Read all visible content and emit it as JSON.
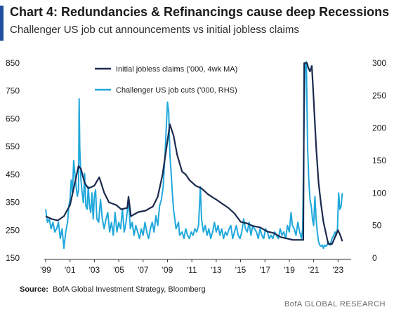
{
  "header": {
    "title": "Chart 4: Redundancies & Refinancings cause deep Recessions",
    "subtitle": "Challenger US job cut announcements vs initial jobless claims"
  },
  "footer": {
    "source_label": "Source:",
    "source_text": "BofA Global Investment Strategy, Bloomberg",
    "brand": "BofA GLOBAL RESEARCH"
  },
  "colors": {
    "dark_series": "#1b2a4e",
    "light_series": "#20a8dc",
    "accent": "#1f4e9c"
  },
  "chart_data": {
    "type": "line",
    "x_range": [
      1999,
      2023.5
    ],
    "x_ticks": [
      {
        "value": 1999,
        "label": "'99"
      },
      {
        "value": 2001,
        "label": "'01"
      },
      {
        "value": 2003,
        "label": "'03"
      },
      {
        "value": 2005,
        "label": "'05"
      },
      {
        "value": 2007,
        "label": "'07"
      },
      {
        "value": 2009,
        "label": "'09"
      },
      {
        "value": 2011,
        "label": "'11"
      },
      {
        "value": 2013,
        "label": "'13"
      },
      {
        "value": 2015,
        "label": "'15"
      },
      {
        "value": 2017,
        "label": "'17"
      },
      {
        "value": 2019,
        "label": "'19"
      },
      {
        "value": 2021,
        "label": "'21"
      },
      {
        "value": 2023,
        "label": "'23"
      }
    ],
    "y_left": {
      "range": [
        150,
        850
      ],
      "ticks": [
        150,
        250,
        350,
        450,
        550,
        650,
        750,
        850
      ]
    },
    "y_right": {
      "range": [
        0,
        300
      ],
      "ticks": [
        0,
        50,
        100,
        150,
        200,
        250,
        300
      ]
    },
    "legend_position": "top-center",
    "grid": false,
    "series": [
      {
        "name": "Initial jobless claims ('000, 4wk MA)",
        "axis": "left",
        "color": "#1b2a4e",
        "points": [
          [
            1999.0,
            300
          ],
          [
            1999.5,
            290
          ],
          [
            2000.0,
            285
          ],
          [
            2000.5,
            300
          ],
          [
            2001.0,
            340
          ],
          [
            2001.3,
            400
          ],
          [
            2001.7,
            480
          ],
          [
            2001.9,
            470
          ],
          [
            2002.2,
            420
          ],
          [
            2002.5,
            400
          ],
          [
            2003.0,
            410
          ],
          [
            2003.4,
            440
          ],
          [
            2003.8,
            385
          ],
          [
            2004.2,
            350
          ],
          [
            2004.8,
            340
          ],
          [
            2005.2,
            325
          ],
          [
            2005.7,
            330
          ],
          [
            2005.8,
            370
          ],
          [
            2006.0,
            300
          ],
          [
            2006.6,
            315
          ],
          [
            2007.2,
            320
          ],
          [
            2007.8,
            335
          ],
          [
            2008.2,
            370
          ],
          [
            2008.6,
            450
          ],
          [
            2008.9,
            540
          ],
          [
            2009.2,
            630
          ],
          [
            2009.5,
            590
          ],
          [
            2009.8,
            520
          ],
          [
            2010.2,
            460
          ],
          [
            2010.5,
            450
          ],
          [
            2010.8,
            430
          ],
          [
            2011.3,
            410
          ],
          [
            2011.8,
            400
          ],
          [
            2012.3,
            380
          ],
          [
            2012.8,
            365
          ],
          [
            2013.0,
            360
          ],
          [
            2013.5,
            345
          ],
          [
            2014.0,
            330
          ],
          [
            2014.5,
            310
          ],
          [
            2015.0,
            280
          ],
          [
            2015.5,
            275
          ],
          [
            2016.0,
            265
          ],
          [
            2016.6,
            260
          ],
          [
            2017.2,
            245
          ],
          [
            2017.7,
            240
          ],
          [
            2018.3,
            225
          ],
          [
            2018.8,
            220
          ],
          [
            2019.3,
            215
          ],
          [
            2019.8,
            215
          ],
          [
            2020.15,
            215
          ],
          [
            2020.22,
            850
          ],
          [
            2020.45,
            850
          ],
          [
            2020.55,
            835
          ],
          [
            2020.7,
            820
          ],
          [
            2020.85,
            840
          ],
          [
            2021.0,
            720
          ],
          [
            2021.2,
            550
          ],
          [
            2021.4,
            420
          ],
          [
            2021.6,
            345
          ],
          [
            2021.8,
            280
          ],
          [
            2022.0,
            240
          ],
          [
            2022.2,
            200
          ],
          [
            2022.5,
            200
          ],
          [
            2022.8,
            230
          ],
          [
            2023.0,
            250
          ],
          [
            2023.2,
            230
          ],
          [
            2023.35,
            210
          ]
        ]
      },
      {
        "name": "Challenger US job cuts ('000, RHS)",
        "axis": "right",
        "color": "#20a8dc",
        "points": [
          [
            1999.0,
            75
          ],
          [
            1999.15,
            55
          ],
          [
            1999.3,
            60
          ],
          [
            1999.45,
            45
          ],
          [
            1999.6,
            55
          ],
          [
            1999.75,
            40
          ],
          [
            1999.9,
            45
          ],
          [
            2000.05,
            55
          ],
          [
            2000.2,
            30
          ],
          [
            2000.35,
            45
          ],
          [
            2000.5,
            15
          ],
          [
            2000.65,
            40
          ],
          [
            2000.8,
            55
          ],
          [
            2000.9,
            80
          ],
          [
            2001.0,
            90
          ],
          [
            2001.1,
            120
          ],
          [
            2001.2,
            100
          ],
          [
            2001.3,
            150
          ],
          [
            2001.4,
            130
          ],
          [
            2001.5,
            110
          ],
          [
            2001.6,
            95
          ],
          [
            2001.7,
            105
          ],
          [
            2001.75,
            245
          ],
          [
            2001.8,
            170
          ],
          [
            2001.9,
            120
          ],
          [
            2002.0,
            100
          ],
          [
            2002.1,
            85
          ],
          [
            2002.2,
            130
          ],
          [
            2002.3,
            80
          ],
          [
            2002.4,
            75
          ],
          [
            2002.5,
            110
          ],
          [
            2002.6,
            80
          ],
          [
            2002.7,
            70
          ],
          [
            2002.8,
            100
          ],
          [
            2002.9,
            60
          ],
          [
            2003.0,
            95
          ],
          [
            2003.1,
            105
          ],
          [
            2003.2,
            60
          ],
          [
            2003.35,
            55
          ],
          [
            2003.5,
            90
          ],
          [
            2003.65,
            60
          ],
          [
            2003.8,
            45
          ],
          [
            2003.95,
            60
          ],
          [
            2004.1,
            70
          ],
          [
            2004.25,
            40
          ],
          [
            2004.4,
            55
          ],
          [
            2004.55,
            35
          ],
          [
            2004.7,
            70
          ],
          [
            2004.85,
            40
          ],
          [
            2005.0,
            55
          ],
          [
            2005.15,
            45
          ],
          [
            2005.3,
            75
          ],
          [
            2005.45,
            40
          ],
          [
            2005.6,
            55
          ],
          [
            2005.8,
            90
          ],
          [
            2005.95,
            45
          ],
          [
            2006.1,
            55
          ],
          [
            2006.25,
            35
          ],
          [
            2006.4,
            50
          ],
          [
            2006.55,
            40
          ],
          [
            2006.7,
            30
          ],
          [
            2006.85,
            45
          ],
          [
            2007.0,
            35
          ],
          [
            2007.15,
            55
          ],
          [
            2007.3,
            40
          ],
          [
            2007.45,
            30
          ],
          [
            2007.6,
            45
          ],
          [
            2007.75,
            55
          ],
          [
            2007.9,
            40
          ],
          [
            2008.05,
            65
          ],
          [
            2008.2,
            50
          ],
          [
            2008.35,
            80
          ],
          [
            2008.5,
            90
          ],
          [
            2008.65,
            110
          ],
          [
            2008.8,
            160
          ],
          [
            2008.9,
            200
          ],
          [
            2009.0,
            240
          ],
          [
            2009.1,
            225
          ],
          [
            2009.2,
            160
          ],
          [
            2009.3,
            130
          ],
          [
            2009.4,
            100
          ],
          [
            2009.5,
            75
          ],
          [
            2009.6,
            60
          ],
          [
            2009.7,
            45
          ],
          [
            2009.8,
            50
          ],
          [
            2009.9,
            55
          ],
          [
            2010.0,
            35
          ],
          [
            2010.2,
            40
          ],
          [
            2010.35,
            30
          ],
          [
            2010.5,
            45
          ],
          [
            2010.65,
            35
          ],
          [
            2010.8,
            30
          ],
          [
            2010.95,
            40
          ],
          [
            2011.1,
            35
          ],
          [
            2011.25,
            45
          ],
          [
            2011.4,
            40
          ],
          [
            2011.55,
            50
          ],
          [
            2011.7,
            110
          ],
          [
            2011.8,
            60
          ],
          [
            2011.95,
            40
          ],
          [
            2012.1,
            50
          ],
          [
            2012.25,
            35
          ],
          [
            2012.4,
            45
          ],
          [
            2012.55,
            30
          ],
          [
            2012.7,
            40
          ],
          [
            2012.85,
            55
          ],
          [
            2013.0,
            40
          ],
          [
            2013.15,
            50
          ],
          [
            2013.3,
            35
          ],
          [
            2013.45,
            45
          ],
          [
            2013.6,
            30
          ],
          [
            2013.75,
            40
          ],
          [
            2013.9,
            35
          ],
          [
            2014.05,
            45
          ],
          [
            2014.2,
            50
          ],
          [
            2014.35,
            30
          ],
          [
            2014.5,
            40
          ],
          [
            2014.65,
            50
          ],
          [
            2014.8,
            35
          ],
          [
            2014.95,
            30
          ],
          [
            2015.1,
            40
          ],
          [
            2015.25,
            60
          ],
          [
            2015.4,
            45
          ],
          [
            2015.55,
            40
          ],
          [
            2015.7,
            55
          ],
          [
            2015.85,
            35
          ],
          [
            2016.0,
            50
          ],
          [
            2016.15,
            45
          ],
          [
            2016.3,
            40
          ],
          [
            2016.45,
            30
          ],
          [
            2016.6,
            45
          ],
          [
            2016.75,
            35
          ],
          [
            2016.9,
            30
          ],
          [
            2017.05,
            45
          ],
          [
            2017.2,
            40
          ],
          [
            2017.35,
            30
          ],
          [
            2017.5,
            35
          ],
          [
            2017.65,
            30
          ],
          [
            2017.8,
            40
          ],
          [
            2017.95,
            35
          ],
          [
            2018.1,
            30
          ],
          [
            2018.25,
            45
          ],
          [
            2018.4,
            35
          ],
          [
            2018.55,
            40
          ],
          [
            2018.7,
            30
          ],
          [
            2018.85,
            50
          ],
          [
            2019.0,
            40
          ],
          [
            2019.15,
            70
          ],
          [
            2019.25,
            50
          ],
          [
            2019.4,
            45
          ],
          [
            2019.55,
            35
          ],
          [
            2019.7,
            55
          ],
          [
            2019.85,
            40
          ],
          [
            2020.0,
            30
          ],
          [
            2020.1,
            45
          ],
          [
            2020.2,
            200
          ],
          [
            2020.3,
            300
          ],
          [
            2020.4,
            350
          ],
          [
            2020.5,
            170
          ],
          [
            2020.6,
            120
          ],
          [
            2020.7,
            90
          ],
          [
            2020.8,
            80
          ],
          [
            2020.9,
            60
          ],
          [
            2021.0,
            50
          ],
          [
            2021.1,
            95
          ],
          [
            2021.2,
            60
          ],
          [
            2021.3,
            40
          ],
          [
            2021.4,
            25
          ],
          [
            2021.5,
            20
          ],
          [
            2021.6,
            18
          ],
          [
            2021.7,
            20
          ],
          [
            2021.8,
            15
          ],
          [
            2021.9,
            20
          ],
          [
            2022.0,
            18
          ],
          [
            2022.1,
            20
          ],
          [
            2022.2,
            25
          ],
          [
            2022.35,
            20
          ],
          [
            2022.5,
            30
          ],
          [
            2022.65,
            35
          ],
          [
            2022.75,
            40
          ],
          [
            2022.85,
            35
          ],
          [
            2022.95,
            45
          ],
          [
            2023.05,
            100
          ],
          [
            2023.15,
            75
          ],
          [
            2023.25,
            80
          ],
          [
            2023.35,
            100
          ]
        ]
      }
    ]
  }
}
